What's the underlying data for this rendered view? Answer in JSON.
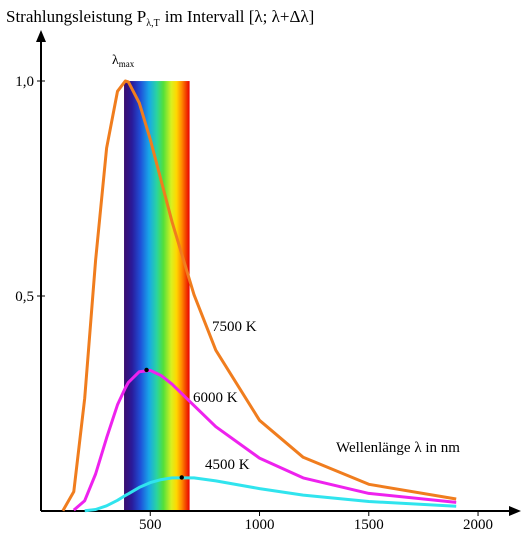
{
  "chart_data": {
    "type": "line",
    "title": {
      "main": "Strahlungsleistung P",
      "sub": "λ,T",
      "rest": "im Intervall [λ; λ+Δλ]"
    },
    "x_label": "Wellenlänge λ in nm",
    "annotation": {
      "main": "λ",
      "sub": "max"
    },
    "visible_range": [
      380,
      680
    ],
    "x": [
      100,
      150,
      200,
      250,
      300,
      350,
      386,
      400,
      450,
      500,
      550,
      600,
      700,
      800,
      1000,
      1200,
      1500,
      1900
    ],
    "series": [
      {
        "name": "7500 K",
        "color": "#f07d1e",
        "values": [
          0.0006,
          0.045,
          0.262,
          0.583,
          0.844,
          0.976,
          1.0,
          0.998,
          0.949,
          0.864,
          0.768,
          0.672,
          0.503,
          0.374,
          0.211,
          0.125,
          0.062,
          0.028
        ]
      },
      {
        "name": "6000 K",
        "color": "#ee22ee",
        "values": [
          null,
          0.002,
          0.024,
          0.086,
          0.17,
          0.247,
          0.286,
          0.299,
          0.324,
          0.327,
          0.315,
          0.295,
          0.245,
          0.196,
          0.123,
          0.077,
          0.041,
          0.02
        ]
      },
      {
        "name": "4500 K",
        "color": "#30e4ee",
        "values": [
          null,
          null,
          0.0004,
          0.0035,
          0.012,
          0.025,
          0.036,
          0.04,
          0.055,
          0.066,
          0.073,
          0.077,
          0.077,
          0.07,
          0.052,
          0.037,
          0.022,
          0.011
        ]
      }
    ],
    "peaks": {
      "x": [
        483,
        644
      ],
      "values": [
        0.328,
        0.078
      ]
    },
    "xlim": [
      0,
      2160
    ],
    "ylim": [
      0,
      1.1
    ],
    "xticks": [
      500,
      1000,
      1500,
      2000
    ],
    "yticks": [
      {
        "value": 0.5,
        "label": "0,5"
      },
      {
        "value": 1,
        "label": "1,0"
      }
    ]
  }
}
